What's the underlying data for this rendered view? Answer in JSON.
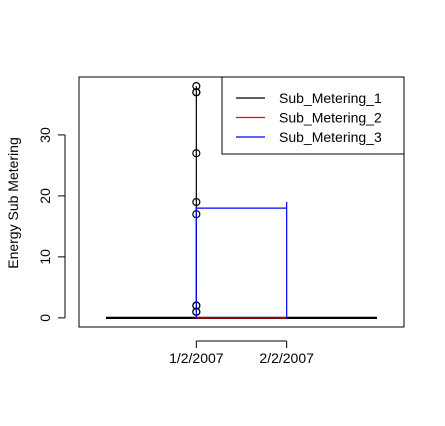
{
  "chart_data": {
    "type": "line",
    "title": "",
    "xlabel": "",
    "ylabel": "Energy Sub Metering",
    "x_ticks": [
      "1/2/2007",
      "2/2/2007"
    ],
    "x_range": [
      "31/1/2007",
      "3/2/2007"
    ],
    "ylim": [
      -1.5,
      39.5
    ],
    "y_ticks": [
      0,
      10,
      20,
      30
    ],
    "legend_position": "top-right",
    "grid": false,
    "series": [
      {
        "name": "Sub_Metering_1",
        "color": "#000000",
        "style": "line with open circle markers",
        "points": [
          {
            "x": "1/2/2007",
            "y": 37
          },
          {
            "x": "1/2/2007",
            "y": 38
          },
          {
            "x": "1/2/2007",
            "y": 37
          },
          {
            "x": "1/2/2007",
            "y": 27
          },
          {
            "x": "1/2/2007",
            "y": 19
          },
          {
            "x": "1/2/2007",
            "y": 17
          },
          {
            "x": "1/2/2007",
            "y": 2
          },
          {
            "x": "1/2/2007",
            "y": 1
          },
          {
            "x": "1/2/2007",
            "y": 2
          },
          {
            "x": "1/2/2007",
            "y": 1
          }
        ],
        "baseline": {
          "from": "31/1/2007",
          "to": "3/2/2007",
          "y": 0
        }
      },
      {
        "name": "Sub_Metering_2",
        "color": "#ff0000",
        "points": [
          {
            "x": "1/2/2007",
            "y": 0
          },
          {
            "x": "2/2/2007",
            "y": 0
          }
        ]
      },
      {
        "name": "Sub_Metering_3",
        "color": "#0000ff",
        "points": [
          {
            "x": "1/2/2007",
            "y": 0
          },
          {
            "x": "1/2/2007",
            "y": 18
          },
          {
            "x": "2/2/2007",
            "y": 18
          },
          {
            "x": "2/2/2007",
            "y": 19
          },
          {
            "x": "2/2/2007",
            "y": 0
          }
        ]
      }
    ]
  }
}
